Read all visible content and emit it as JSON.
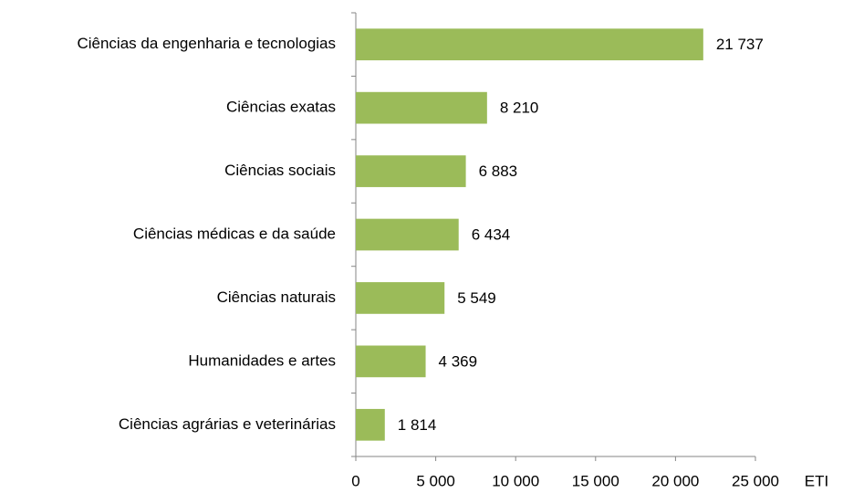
{
  "chart_data": {
    "type": "bar",
    "orientation": "horizontal",
    "categories": [
      "Ciências da engenharia e tecnologias",
      "Ciências exatas",
      "Ciências sociais",
      "Ciências médicas e da saúde",
      "Ciências naturais",
      "Humanidades e artes",
      "Ciências agrárias e veterinárias"
    ],
    "values": [
      21737,
      8210,
      6883,
      6434,
      5549,
      4369,
      1814
    ],
    "value_labels": [
      "21 737",
      "8 210",
      "6 883",
      "6 434",
      "5 549",
      "4 369",
      "1 814"
    ],
    "color": "#9bbb59",
    "x_label": "ETI",
    "xlim": [
      0,
      25000
    ],
    "xticks": [
      0,
      {
        "value": 5000,
        "label": "5 000"
      },
      {
        "value": 10000,
        "label": "10 000"
      },
      {
        "value": 15000,
        "label": "15 000"
      },
      {
        "value": 20000,
        "label": "20 000"
      },
      {
        "value": 25000,
        "label": "25 000"
      }
    ],
    "grid": false
  }
}
